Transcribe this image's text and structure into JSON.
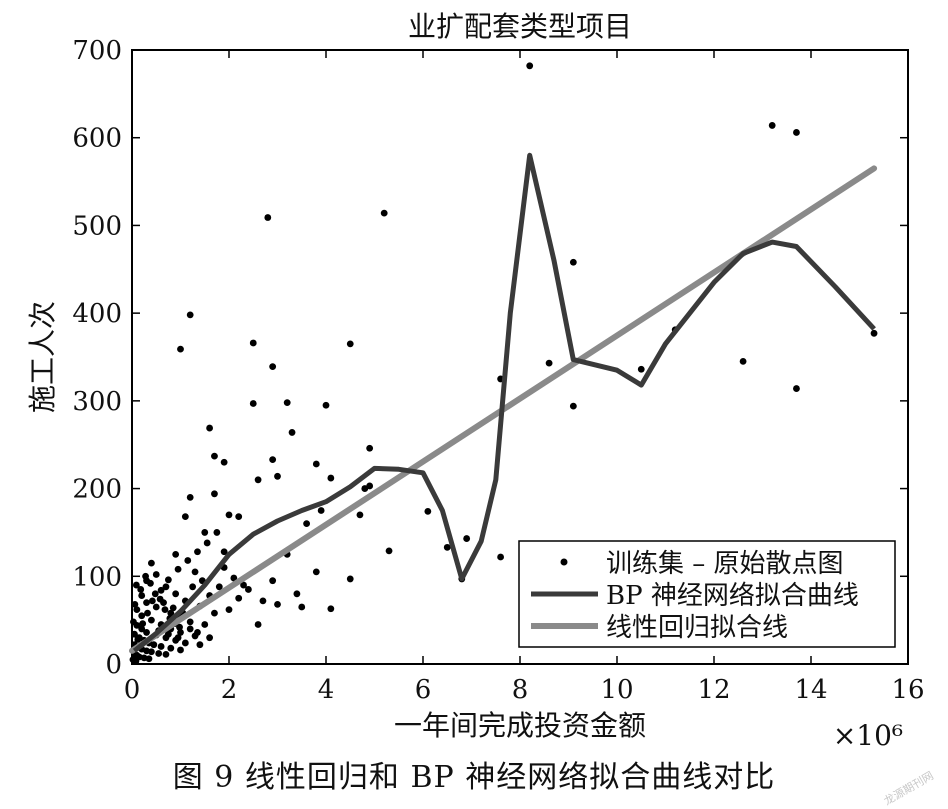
{
  "caption": "图 9   线性回归和 BP 神经网络拟合曲线对比",
  "watermark": "龙源期刊网",
  "colors": {
    "scatter": "#000000",
    "bp": "#3a3a3a",
    "linear": "#8a8a8a",
    "axis": "#000000"
  },
  "chart_data": {
    "type": "line",
    "title": "业扩配套类型项目",
    "xlabel": "一年间完成投资金额",
    "ylabel": "施工人次",
    "x_multiplier_label": "×10⁶",
    "xlim": [
      0,
      16
    ],
    "ylim": [
      0,
      700
    ],
    "xticks": [
      0,
      2,
      4,
      6,
      8,
      10,
      12,
      14,
      16
    ],
    "yticks": [
      0,
      100,
      200,
      300,
      400,
      500,
      600,
      700
    ],
    "grid": false,
    "legend_position": "bottom-right",
    "legend": [
      "训练集 – 原始散点图",
      "BP 神经网络拟合曲线",
      "线性回归拟合线"
    ],
    "series": [
      {
        "name": "训练集 – 原始散点图",
        "kind": "scatter",
        "points": [
          [
            8.2,
            682
          ],
          [
            13.2,
            614
          ],
          [
            13.7,
            606
          ],
          [
            2.8,
            509
          ],
          [
            5.2,
            514
          ],
          [
            1.2,
            398
          ],
          [
            1.0,
            359
          ],
          [
            2.5,
            366
          ],
          [
            4.5,
            365
          ],
          [
            2.9,
            339
          ],
          [
            9.1,
            458
          ],
          [
            11.2,
            381
          ],
          [
            10.5,
            336
          ],
          [
            8.6,
            343
          ],
          [
            12.6,
            345
          ],
          [
            13.7,
            314
          ],
          [
            15.3,
            377
          ],
          [
            9.1,
            294
          ],
          [
            7.6,
            325
          ],
          [
            2.5,
            297
          ],
          [
            3.2,
            298
          ],
          [
            4.0,
            295
          ],
          [
            1.6,
            269
          ],
          [
            3.3,
            264
          ],
          [
            4.9,
            246
          ],
          [
            1.7,
            237
          ],
          [
            2.9,
            233
          ],
          [
            1.9,
            230
          ],
          [
            3.8,
            228
          ],
          [
            3.0,
            214
          ],
          [
            2.6,
            210
          ],
          [
            4.1,
            212
          ],
          [
            3.9,
            175
          ],
          [
            6.1,
            174
          ],
          [
            4.8,
            200
          ],
          [
            4.9,
            203
          ],
          [
            1.2,
            190
          ],
          [
            1.7,
            194
          ],
          [
            2.2,
            168
          ],
          [
            4.7,
            170
          ],
          [
            6.5,
            133
          ],
          [
            6.9,
            143
          ],
          [
            7.6,
            122
          ],
          [
            5.3,
            129
          ],
          [
            4.5,
            97
          ],
          [
            6.8,
            97
          ],
          [
            3.5,
            65
          ],
          [
            4.1,
            63
          ],
          [
            2.6,
            45
          ],
          [
            3.8,
            105
          ],
          [
            3.6,
            160
          ],
          [
            2.0,
            170
          ],
          [
            1.5,
            150
          ],
          [
            1.9,
            128
          ],
          [
            3.2,
            125
          ],
          [
            2.4,
            85
          ],
          [
            2.9,
            95
          ],
          [
            3.4,
            80
          ],
          [
            2.0,
            62
          ],
          [
            2.2,
            75
          ],
          [
            1.1,
            168
          ],
          [
            1.3,
            105
          ],
          [
            0.9,
            125
          ],
          [
            0.4,
            115
          ],
          [
            0.5,
            102
          ],
          [
            0.3,
            95
          ],
          [
            0.7,
            88
          ],
          [
            0.9,
            80
          ],
          [
            1.1,
            72
          ],
          [
            1.4,
            66
          ],
          [
            1.7,
            58
          ],
          [
            0.2,
            78
          ],
          [
            0.3,
            70
          ],
          [
            0.5,
            65
          ],
          [
            0.8,
            58
          ],
          [
            1.0,
            52
          ],
          [
            1.2,
            48
          ],
          [
            1.5,
            45
          ],
          [
            0.1,
            62
          ],
          [
            0.2,
            55
          ],
          [
            0.4,
            50
          ],
          [
            0.6,
            45
          ],
          [
            0.8,
            40
          ],
          [
            1.0,
            36
          ],
          [
            1.3,
            32
          ],
          [
            1.6,
            30
          ],
          [
            0.1,
            44
          ],
          [
            0.2,
            40
          ],
          [
            0.3,
            36
          ],
          [
            0.5,
            33
          ],
          [
            0.7,
            30
          ],
          [
            0.9,
            27
          ],
          [
            1.1,
            24
          ],
          [
            1.4,
            22
          ],
          [
            0.05,
            34
          ],
          [
            0.15,
            30
          ],
          [
            0.25,
            27
          ],
          [
            0.35,
            24
          ],
          [
            0.45,
            22
          ],
          [
            0.6,
            20
          ],
          [
            0.8,
            18
          ],
          [
            1.0,
            16
          ],
          [
            0.05,
            22
          ],
          [
            0.1,
            19
          ],
          [
            0.2,
            17
          ],
          [
            0.3,
            15
          ],
          [
            0.4,
            14
          ],
          [
            0.55,
            12
          ],
          [
            0.7,
            11
          ],
          [
            0.05,
            12
          ],
          [
            0.1,
            10
          ],
          [
            0.15,
            8
          ],
          [
            0.25,
            7
          ],
          [
            0.35,
            6
          ],
          [
            0.02,
            5
          ],
          [
            0.08,
            3
          ],
          [
            0.12,
            28
          ],
          [
            0.22,
            46
          ],
          [
            0.32,
            58
          ],
          [
            0.42,
            72
          ],
          [
            0.6,
            84
          ],
          [
            0.75,
            96
          ],
          [
            0.95,
            108
          ],
          [
            1.15,
            118
          ],
          [
            1.35,
            128
          ],
          [
            1.55,
            138
          ],
          [
            1.75,
            150
          ],
          [
            1.9,
            110
          ],
          [
            2.1,
            98
          ],
          [
            2.3,
            90
          ],
          [
            2.7,
            72
          ],
          [
            3.0,
            68
          ],
          [
            1.8,
            88
          ],
          [
            1.6,
            78
          ],
          [
            1.45,
            95
          ],
          [
            1.25,
            88
          ],
          [
            0.65,
            70
          ],
          [
            0.85,
            64
          ],
          [
            1.05,
            58
          ],
          [
            0.55,
            38
          ],
          [
            0.75,
            34
          ],
          [
            0.95,
            30
          ],
          [
            1.2,
            40
          ],
          [
            1.35,
            36
          ],
          [
            0.18,
            85
          ],
          [
            0.28,
            100
          ],
          [
            0.38,
            92
          ],
          [
            0.48,
            80
          ],
          [
            0.58,
            74
          ],
          [
            0.68,
            62
          ],
          [
            0.78,
            52
          ],
          [
            0.88,
            46
          ],
          [
            0.98,
            42
          ],
          [
            0.03,
            48
          ],
          [
            0.06,
            68
          ],
          [
            0.09,
            90
          ]
        ]
      },
      {
        "name": "BP 神经网络拟合曲线",
        "kind": "line",
        "x": [
          0.05,
          0.5,
          1.0,
          1.5,
          2.0,
          2.5,
          3.0,
          3.5,
          4.0,
          4.5,
          5.0,
          5.5,
          6.0,
          6.4,
          6.8,
          7.2,
          7.5,
          7.8,
          8.2,
          8.7,
          9.1,
          10.0,
          10.5,
          11.0,
          11.5,
          12.0,
          12.6,
          13.2,
          13.7,
          14.5,
          15.3
        ],
        "y": [
          15,
          35,
          60,
          90,
          125,
          148,
          163,
          175,
          185,
          202,
          223,
          222,
          218,
          175,
          97,
          140,
          210,
          400,
          580,
          460,
          347,
          335,
          318,
          365,
          400,
          435,
          468,
          481,
          476,
          430,
          382
        ]
      },
      {
        "name": "线性回归拟合线",
        "kind": "line",
        "x": [
          0,
          15.3
        ],
        "y": [
          15,
          565
        ]
      }
    ]
  }
}
